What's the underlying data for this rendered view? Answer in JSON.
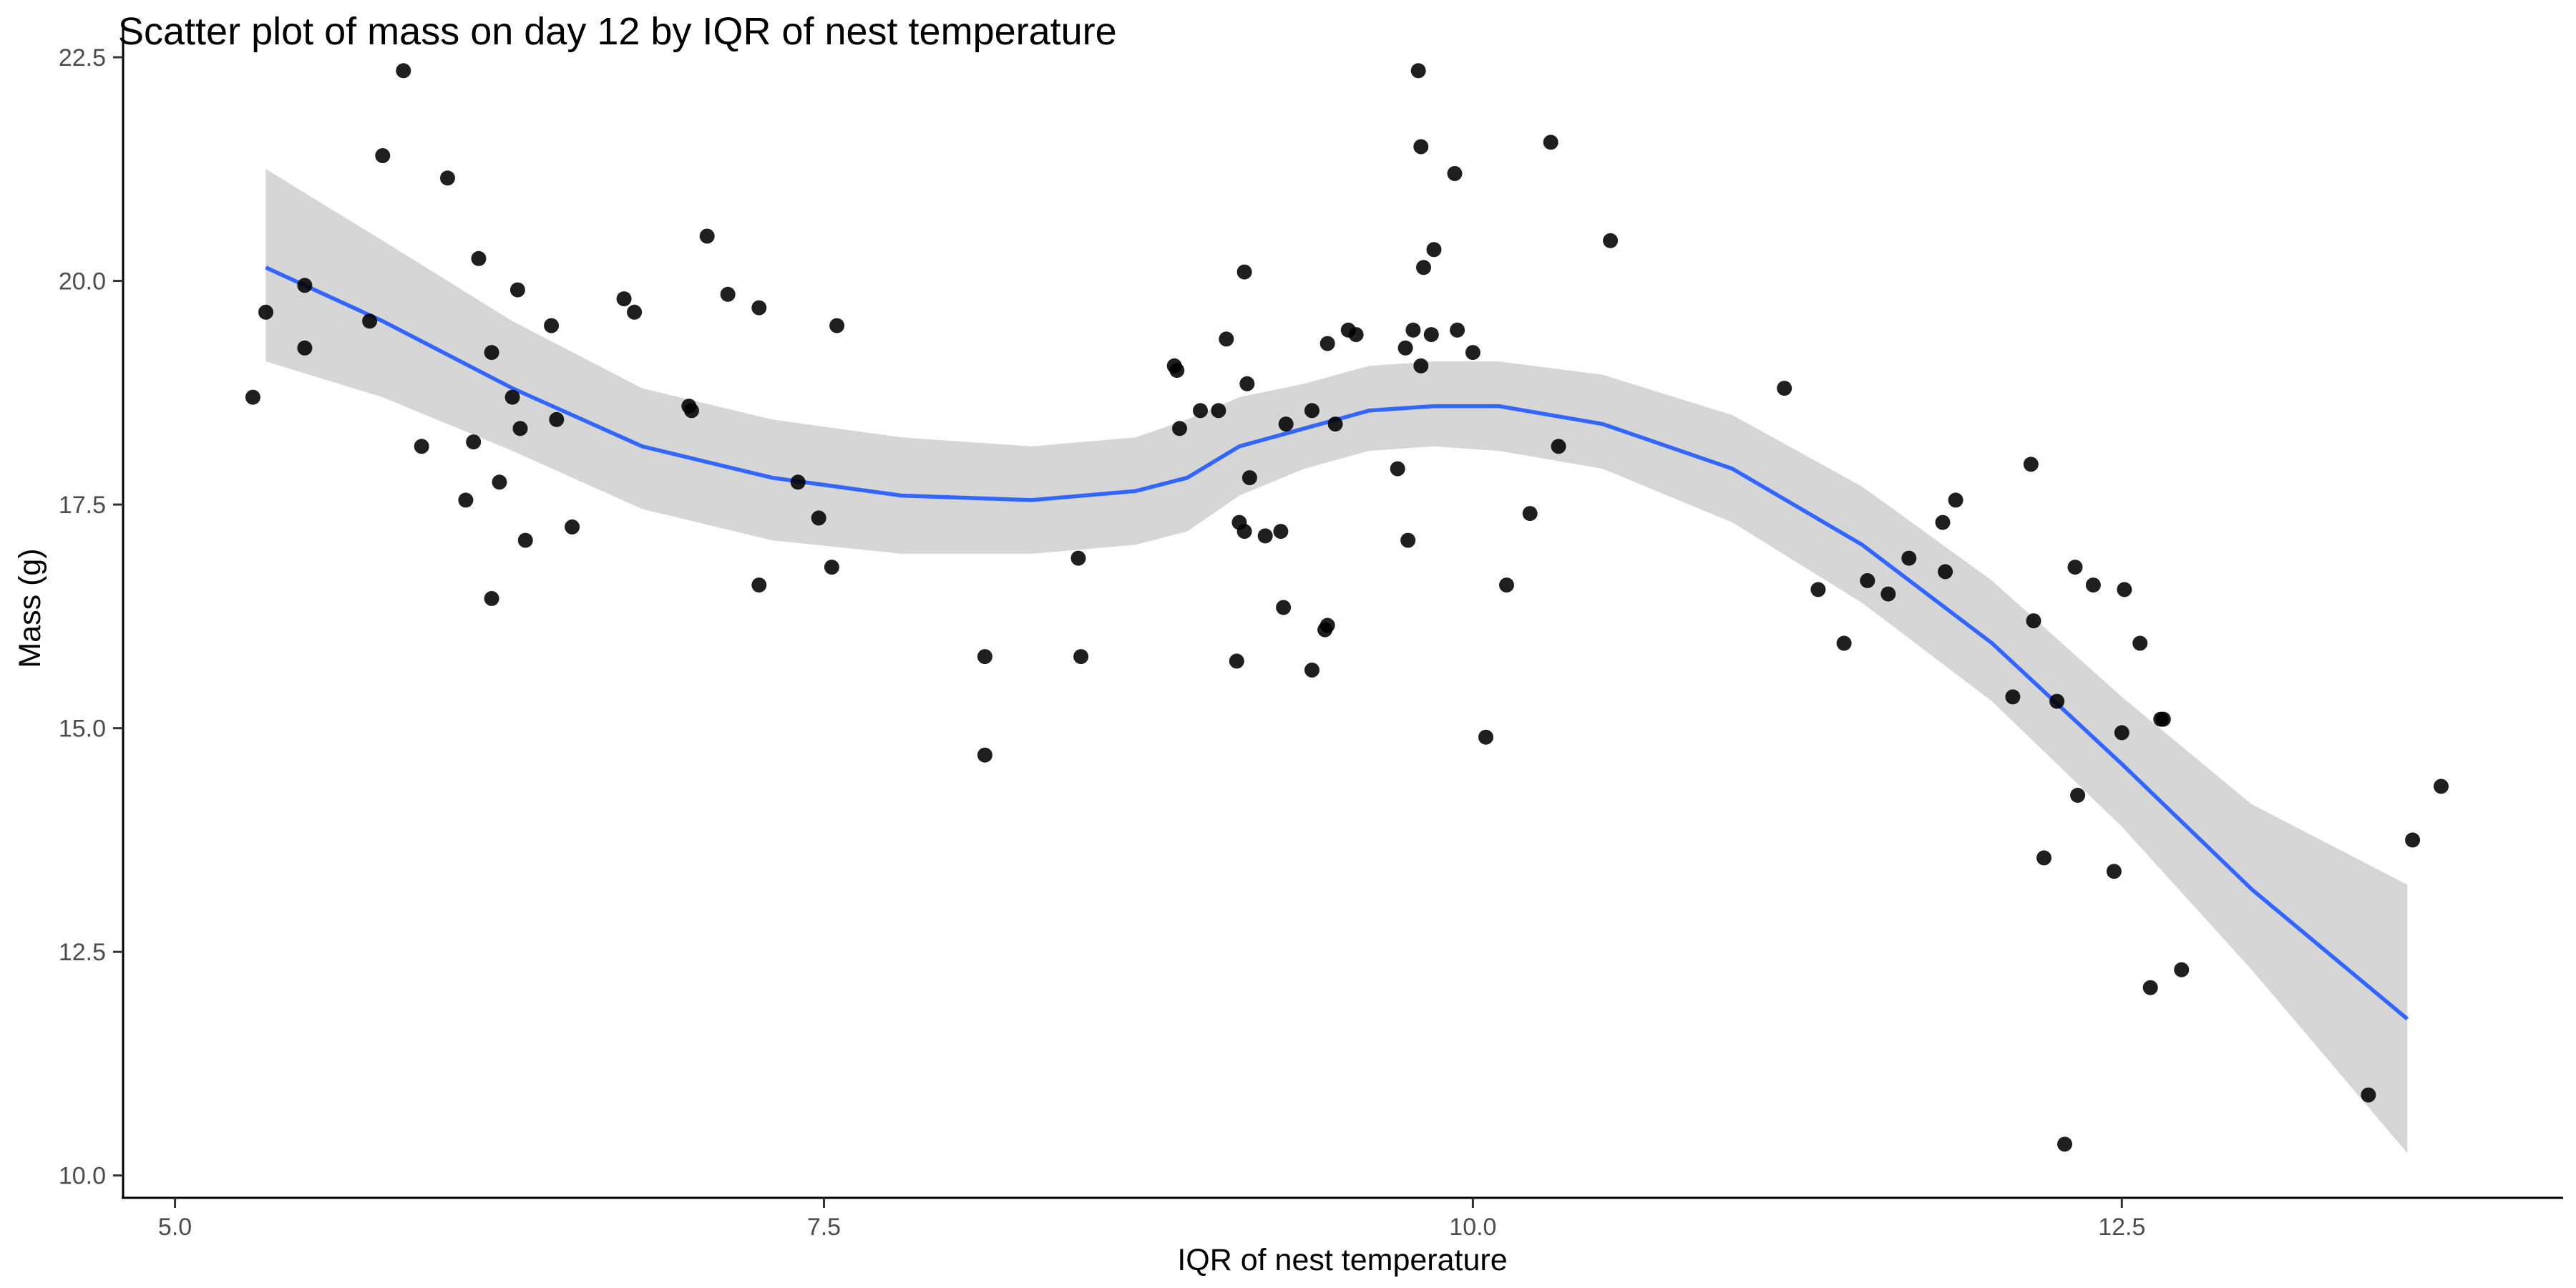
{
  "chart_data": {
    "type": "scatter",
    "title": "Scatter plot of mass on day 12 by IQR of nest temperature",
    "xlabel": "IQR of nest temperature",
    "ylabel": "Mass (g)",
    "xlim": [
      4.8,
      14.2
    ],
    "ylim": [
      9.75,
      22.9
    ],
    "x_ticks": [
      5.0,
      7.5,
      10.0,
      12.5
    ],
    "x_tick_labels": [
      "5.0",
      "7.5",
      "10.0",
      "12.5"
    ],
    "y_ticks": [
      10.0,
      12.5,
      15.0,
      17.5,
      20.0,
      22.5
    ],
    "y_tick_labels": [
      "10.0",
      "12.5",
      "15.0",
      "17.5",
      "20.0",
      "22.5"
    ],
    "grid": false,
    "colors": {
      "points": "#000000",
      "smooth_line": "#3366ff",
      "confidence_band": "#999999"
    },
    "points": [
      {
        "x": 5.3,
        "y": 18.7
      },
      {
        "x": 5.35,
        "y": 19.65
      },
      {
        "x": 5.5,
        "y": 19.95
      },
      {
        "x": 5.5,
        "y": 19.25
      },
      {
        "x": 5.75,
        "y": 19.55
      },
      {
        "x": 5.8,
        "y": 21.4
      },
      {
        "x": 5.88,
        "y": 22.35
      },
      {
        "x": 5.95,
        "y": 18.15
      },
      {
        "x": 6.05,
        "y": 21.15
      },
      {
        "x": 6.12,
        "y": 17.55
      },
      {
        "x": 6.15,
        "y": 18.2
      },
      {
        "x": 6.17,
        "y": 20.25
      },
      {
        "x": 6.22,
        "y": 19.2
      },
      {
        "x": 6.22,
        "y": 16.45
      },
      {
        "x": 6.25,
        "y": 17.75
      },
      {
        "x": 6.3,
        "y": 18.7
      },
      {
        "x": 6.32,
        "y": 19.9
      },
      {
        "x": 6.33,
        "y": 18.35
      },
      {
        "x": 6.35,
        "y": 17.1
      },
      {
        "x": 6.45,
        "y": 19.5
      },
      {
        "x": 6.47,
        "y": 18.45
      },
      {
        "x": 6.53,
        "y": 17.25
      },
      {
        "x": 6.73,
        "y": 19.8
      },
      {
        "x": 6.77,
        "y": 19.65
      },
      {
        "x": 6.98,
        "y": 18.6
      },
      {
        "x": 6.99,
        "y": 18.55
      },
      {
        "x": 7.05,
        "y": 20.5
      },
      {
        "x": 7.13,
        "y": 19.85
      },
      {
        "x": 7.25,
        "y": 19.7
      },
      {
        "x": 7.25,
        "y": 16.6
      },
      {
        "x": 7.4,
        "y": 17.75
      },
      {
        "x": 7.48,
        "y": 17.35
      },
      {
        "x": 7.53,
        "y": 16.8
      },
      {
        "x": 7.55,
        "y": 19.5
      },
      {
        "x": 8.12,
        "y": 15.8
      },
      {
        "x": 8.12,
        "y": 14.7
      },
      {
        "x": 8.48,
        "y": 16.9
      },
      {
        "x": 8.49,
        "y": 15.8
      },
      {
        "x": 8.85,
        "y": 19.05
      },
      {
        "x": 8.86,
        "y": 19.0
      },
      {
        "x": 8.87,
        "y": 18.35
      },
      {
        "x": 8.95,
        "y": 18.55
      },
      {
        "x": 9.02,
        "y": 18.55
      },
      {
        "x": 9.05,
        "y": 19.35
      },
      {
        "x": 9.09,
        "y": 15.75
      },
      {
        "x": 9.1,
        "y": 17.3
      },
      {
        "x": 9.12,
        "y": 17.2
      },
      {
        "x": 9.12,
        "y": 20.1
      },
      {
        "x": 9.13,
        "y": 18.85
      },
      {
        "x": 9.14,
        "y": 17.8
      },
      {
        "x": 9.2,
        "y": 17.15
      },
      {
        "x": 9.26,
        "y": 17.2
      },
      {
        "x": 9.27,
        "y": 16.35
      },
      {
        "x": 9.28,
        "y": 18.4
      },
      {
        "x": 9.38,
        "y": 18.55
      },
      {
        "x": 9.38,
        "y": 15.65
      },
      {
        "x": 9.43,
        "y": 16.1
      },
      {
        "x": 9.44,
        "y": 16.15
      },
      {
        "x": 9.44,
        "y": 19.3
      },
      {
        "x": 9.47,
        "y": 18.4
      },
      {
        "x": 9.52,
        "y": 19.45
      },
      {
        "x": 9.55,
        "y": 19.4
      },
      {
        "x": 9.71,
        "y": 17.9
      },
      {
        "x": 9.74,
        "y": 19.25
      },
      {
        "x": 9.75,
        "y": 17.1
      },
      {
        "x": 9.77,
        "y": 19.45
      },
      {
        "x": 9.8,
        "y": 19.05
      },
      {
        "x": 9.79,
        "y": 22.35
      },
      {
        "x": 9.8,
        "y": 21.5
      },
      {
        "x": 9.81,
        "y": 20.15
      },
      {
        "x": 9.84,
        "y": 19.4
      },
      {
        "x": 9.85,
        "y": 20.35
      },
      {
        "x": 9.93,
        "y": 21.2
      },
      {
        "x": 9.94,
        "y": 19.45
      },
      {
        "x": 10.0,
        "y": 19.2
      },
      {
        "x": 10.05,
        "y": 14.9
      },
      {
        "x": 10.13,
        "y": 16.6
      },
      {
        "x": 10.22,
        "y": 17.4
      },
      {
        "x": 10.3,
        "y": 21.55
      },
      {
        "x": 10.33,
        "y": 18.15
      },
      {
        "x": 10.53,
        "y": 20.45
      },
      {
        "x": 11.2,
        "y": 18.8
      },
      {
        "x": 11.33,
        "y": 16.55
      },
      {
        "x": 11.43,
        "y": 15.95
      },
      {
        "x": 11.52,
        "y": 16.65
      },
      {
        "x": 11.6,
        "y": 16.5
      },
      {
        "x": 11.68,
        "y": 16.9
      },
      {
        "x": 11.81,
        "y": 17.3
      },
      {
        "x": 11.82,
        "y": 16.75
      },
      {
        "x": 11.86,
        "y": 17.55
      },
      {
        "x": 12.08,
        "y": 15.35
      },
      {
        "x": 12.15,
        "y": 17.95
      },
      {
        "x": 12.16,
        "y": 16.2
      },
      {
        "x": 12.2,
        "y": 13.55
      },
      {
        "x": 12.25,
        "y": 15.3
      },
      {
        "x": 12.28,
        "y": 10.35
      },
      {
        "x": 12.32,
        "y": 16.8
      },
      {
        "x": 12.33,
        "y": 14.25
      },
      {
        "x": 12.39,
        "y": 16.6
      },
      {
        "x": 12.47,
        "y": 13.4
      },
      {
        "x": 12.5,
        "y": 14.95
      },
      {
        "x": 12.51,
        "y": 16.55
      },
      {
        "x": 12.57,
        "y": 15.95
      },
      {
        "x": 12.61,
        "y": 12.1
      },
      {
        "x": 12.65,
        "y": 15.1
      },
      {
        "x": 12.66,
        "y": 15.1
      },
      {
        "x": 12.73,
        "y": 12.3
      },
      {
        "x": 13.45,
        "y": 10.9
      },
      {
        "x": 13.62,
        "y": 13.75
      },
      {
        "x": 13.73,
        "y": 14.35
      }
    ],
    "smooth": {
      "x": [
        5.35,
        5.8,
        6.3,
        6.8,
        7.3,
        7.8,
        8.3,
        8.7,
        8.9,
        9.1,
        9.35,
        9.6,
        9.85,
        10.1,
        10.5,
        11.0,
        11.5,
        12.0,
        12.5,
        13.0,
        13.6
      ],
      "y": [
        20.15,
        19.55,
        18.8,
        18.15,
        17.8,
        17.6,
        17.55,
        17.65,
        17.8,
        18.15,
        18.35,
        18.55,
        18.6,
        18.6,
        18.4,
        17.9,
        17.05,
        15.95,
        14.6,
        13.2,
        11.75
      ],
      "lower": [
        19.1,
        18.7,
        18.1,
        17.45,
        17.1,
        16.95,
        16.95,
        17.05,
        17.2,
        17.6,
        17.9,
        18.1,
        18.15,
        18.1,
        17.9,
        17.3,
        16.4,
        15.3,
        13.9,
        12.3,
        10.25
      ],
      "upper": [
        21.25,
        20.45,
        19.55,
        18.8,
        18.45,
        18.25,
        18.15,
        18.25,
        18.45,
        18.7,
        18.85,
        19.05,
        19.1,
        19.1,
        18.95,
        18.5,
        17.7,
        16.65,
        15.35,
        14.15,
        13.25
      ]
    }
  }
}
